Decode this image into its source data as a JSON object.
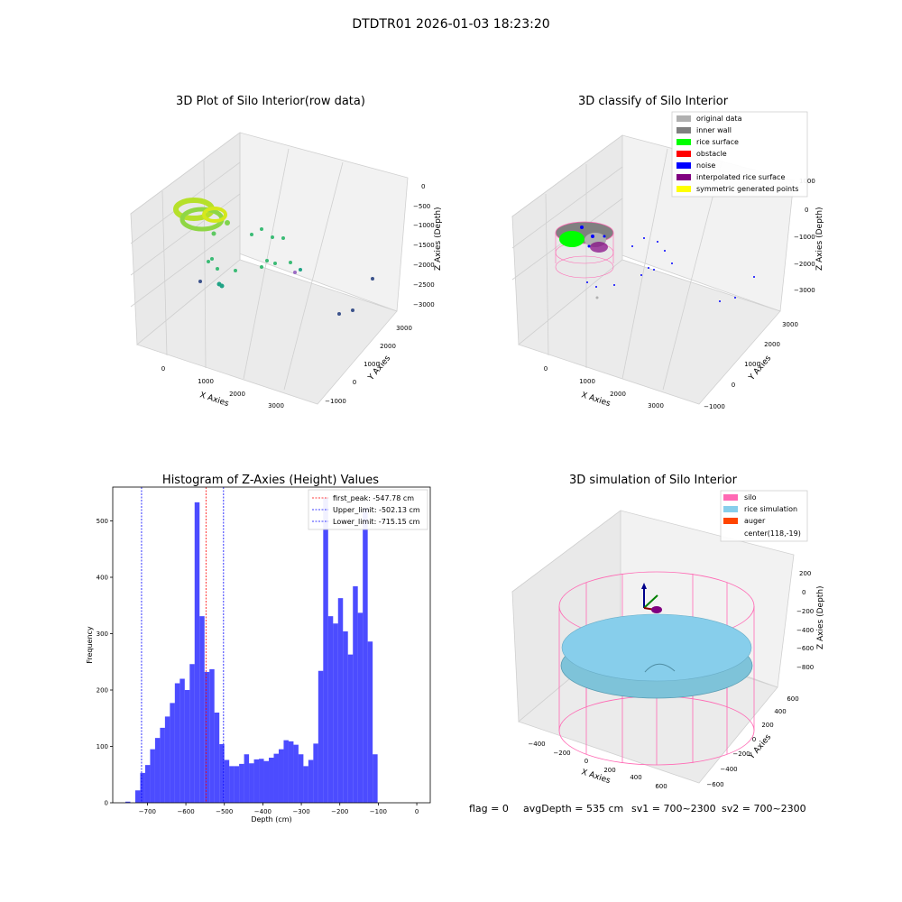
{
  "suptitle": "DTDTR01 2026-01-03 18:23:20",
  "footer": {
    "flag": "flag = 0",
    "avg_depth": "avgDepth = 535 cm",
    "sv1": "sv1 = 700~2300",
    "sv2": "sv2 = 700~2300"
  },
  "colors": {
    "original": "#b0b0b0",
    "inner_wall": "#808080",
    "rice_surface": "#00ff00",
    "obstacle": "#ff0000",
    "noise": "#0000ff",
    "interp_surface": "#800080",
    "symmetric": "#ffff00",
    "silo": "#ff69b4",
    "rice_sim": "#87ceeb",
    "auger": "#ff4500",
    "hist_bar": "#0000ff"
  },
  "chart_data": [
    {
      "type": "scatter",
      "title": "3D Plot of Silo Interior(row data)",
      "xlabel": "X Axies",
      "ylabel": "Y Axies",
      "zlabel": "Z Axies (Depth)",
      "x_ticks": [
        "0",
        "1000",
        "2000",
        "3000"
      ],
      "y_ticks": [
        "−1000",
        "0",
        "1000",
        "2000",
        "3000"
      ],
      "z_ticks": [
        "0",
        "−500",
        "−1000",
        "−1500",
        "−2000",
        "−2500",
        "−3000"
      ]
    },
    {
      "type": "scatter",
      "title": "3D classify of Silo Interior",
      "xlabel": "X Axies",
      "ylabel": "Y Axies",
      "zlabel": "Z Axies (Depth)",
      "x_ticks": [
        "0",
        "1000",
        "2000",
        "3000"
      ],
      "y_ticks": [
        "−1000",
        "0",
        "1000",
        "2000",
        "3000"
      ],
      "z_ticks": [
        "1000",
        "0",
        "−1000",
        "−2000",
        "−3000"
      ],
      "legend": [
        "original data",
        "inner wall",
        "rice surface",
        "obstacle",
        "noise",
        "interpolated rice surface",
        "symmetric generated points"
      ],
      "legend_placement": "top-right"
    },
    {
      "type": "bar",
      "title": "Histogram of Z-Axies (Height) Values",
      "xlabel": "Depth (cm)",
      "ylabel": "Frequency",
      "xlim": [
        -790,
        35
      ],
      "ylim": [
        0,
        560
      ],
      "x_ticks": [
        -700,
        -600,
        -500,
        -400,
        -300,
        -200,
        -100,
        0
      ],
      "x_tick_labels": [
        "−700",
        "−600",
        "−500",
        "−400",
        "−300",
        "−200",
        "−100",
        "0"
      ],
      "y_ticks": [
        0,
        100,
        200,
        300,
        400,
        500
      ],
      "bin_start": -770,
      "bin_width": 12.85,
      "values": [
        0,
        2,
        0,
        22,
        53,
        67,
        95,
        115,
        133,
        153,
        177,
        212,
        220,
        200,
        246,
        533,
        331,
        232,
        237,
        160,
        104,
        76,
        65,
        65,
        69,
        86,
        70,
        77,
        78,
        74,
        80,
        87,
        95,
        111,
        109,
        103,
        86,
        65,
        76,
        105,
        234,
        541,
        331,
        318,
        363,
        304,
        263,
        384,
        337,
        523,
        286,
        86
      ],
      "lines": [
        {
          "x": -547.78,
          "color": "#ff0000",
          "label": "first_peak: -547.78 cm"
        },
        {
          "x": -502.13,
          "color": "#0000ff",
          "label": "Upper_limit: -502.13 cm"
        },
        {
          "x": -715.15,
          "color": "#0000ff",
          "label": "Lower_limit: -715.15 cm"
        }
      ],
      "legend_placement": "top-right"
    },
    {
      "type": "scatter",
      "title": "3D simulation of Silo Interior",
      "xlabel": "X Axies",
      "ylabel": "Y Axies",
      "zlabel": "Z Axies (Depth)",
      "x_ticks": [
        "−400",
        "−200",
        "0",
        "200",
        "400",
        "600"
      ],
      "y_ticks": [
        "−600",
        "−400",
        "−200",
        "0",
        "200",
        "400",
        "600"
      ],
      "z_ticks": [
        "200",
        "0",
        "−200",
        "−400",
        "−600",
        "−800"
      ],
      "legend": [
        "silo",
        "rice simulation",
        "auger",
        "center(118,-19)"
      ],
      "legend_placement": "top-right"
    }
  ]
}
